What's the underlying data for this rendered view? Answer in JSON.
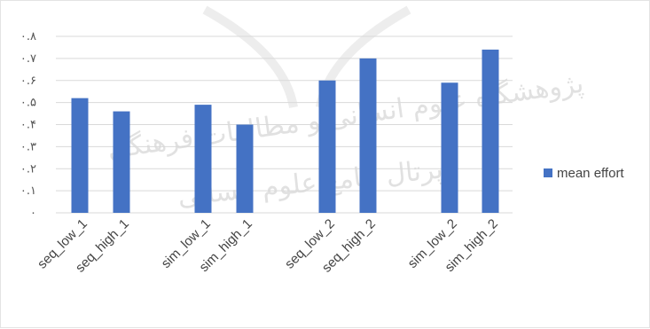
{
  "chart_data": {
    "type": "bar",
    "categories": [
      "seq_low_1",
      "seq_high_1",
      "sim_low_1",
      "sim_high_1",
      "seq_low_2",
      "seq_high_2",
      "sim_low_2",
      "sim_high_2"
    ],
    "series": [
      {
        "name": "mean effort",
        "values": [
          0.52,
          0.46,
          0.49,
          0.4,
          0.6,
          0.7,
          0.59,
          0.74
        ],
        "color": "#4472c4"
      }
    ],
    "y_ticks": [
      "۰",
      "۰.۱",
      "۰.۲",
      "۰.۳",
      "۰.۴",
      "۰.۵",
      "۰.۶",
      "۰.۷",
      "۰.۸"
    ],
    "ylim": [
      0,
      0.8
    ],
    "grid": true,
    "legend_position": "right"
  },
  "watermark": {
    "line1": "پژوهشگاه علوم انسانی و مطالعات فرهنگی",
    "line2": "پرتال جامع علوم انسانی"
  }
}
